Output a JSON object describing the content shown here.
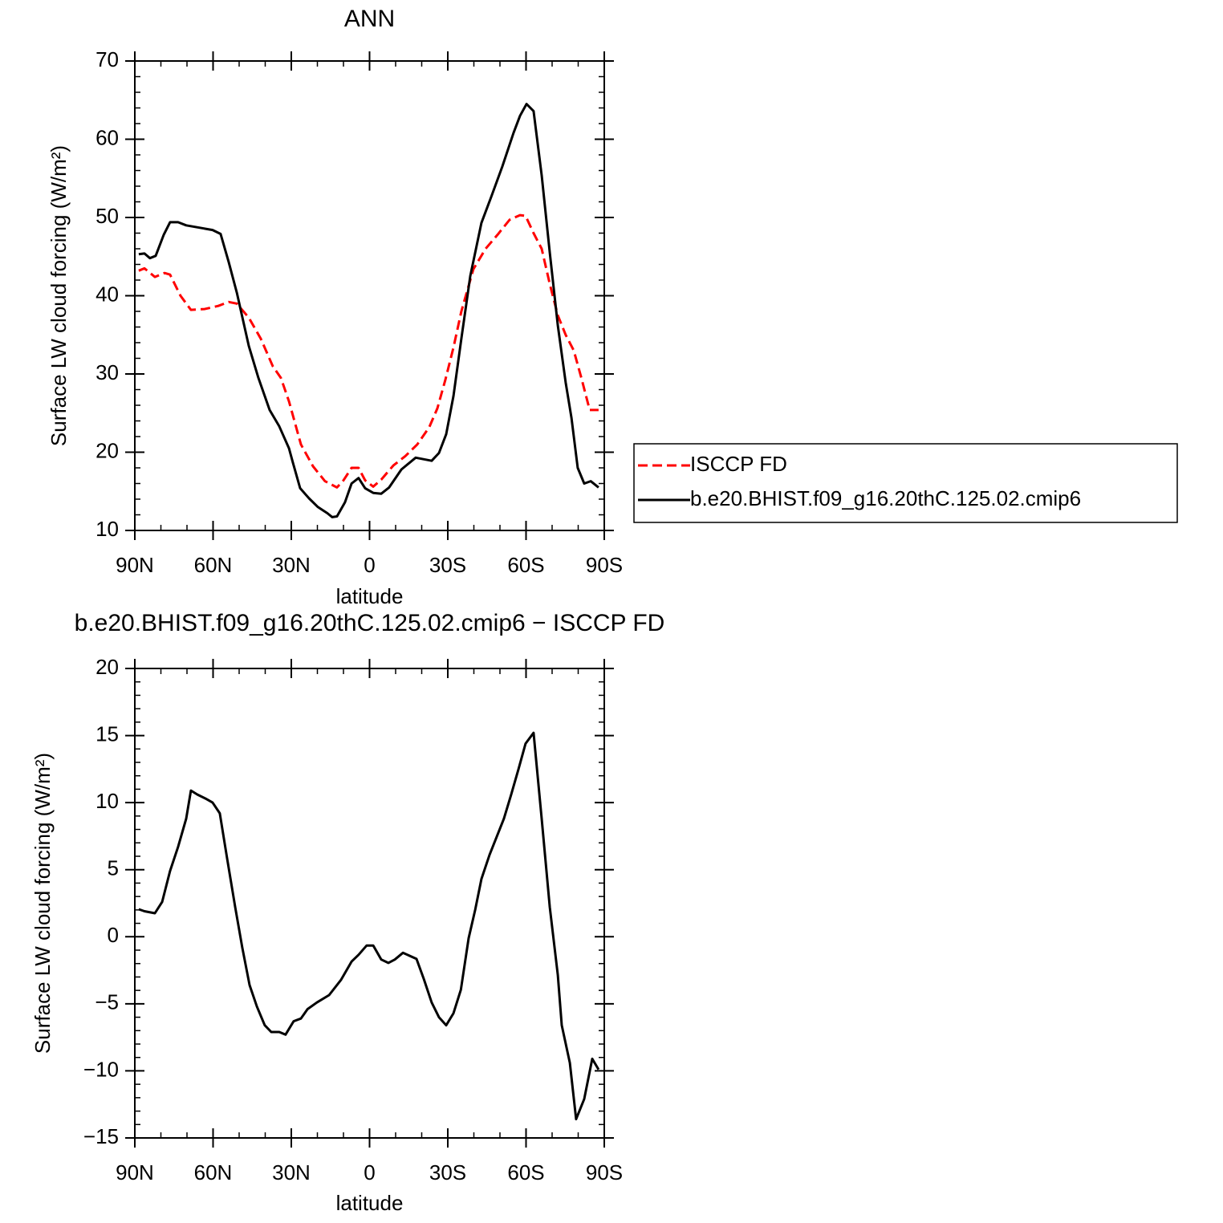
{
  "chart_data": [
    {
      "type": "line",
      "title": "ANN",
      "x_label": "latitude",
      "y_label": "Surface LW cloud forcing (W/m²)",
      "xlim": [
        90,
        -90
      ],
      "ylim": [
        10,
        70
      ],
      "xticks": [
        {
          "value": 90,
          "label": "90N"
        },
        {
          "value": 60,
          "label": "60N"
        },
        {
          "value": 30,
          "label": "30N"
        },
        0,
        {
          "value": -30,
          "label": "30S"
        },
        {
          "value": -60,
          "label": "60S"
        },
        {
          "value": -90,
          "label": "90S"
        }
      ],
      "yticks": [
        10,
        20,
        30,
        40,
        50,
        60,
        70
      ],
      "series": [
        {
          "name": "ISCCP FD",
          "color": "#ff0000",
          "style": "dashed",
          "x": [
            88.5,
            86.3,
            82.3,
            78.6,
            76.5,
            72.5,
            68.5,
            63.2,
            58.0,
            54.0,
            50.9,
            46.3,
            41.7,
            37.1,
            34.0,
            30.9,
            26.3,
            21.7,
            17.1,
            12.5,
            10.0,
            6.9,
            4.2,
            1.7,
            -1.4,
            -4.5,
            -9.1,
            -13.7,
            -18.3,
            -22.9,
            -26.0,
            -29.1,
            -32.2,
            -35.2,
            -39.8,
            -44.5,
            -49.1,
            -53.7,
            -57.7,
            -59.8,
            -62.9,
            -66.0,
            -69.1,
            -72.2,
            -75.2,
            -78.3,
            -81.3,
            -84.4,
            -87.8
          ],
          "values": [
            43.2,
            43.5,
            42.4,
            42.9,
            42.7,
            40.0,
            38.2,
            38.3,
            38.7,
            39.2,
            39.0,
            37.2,
            34.5,
            31.0,
            29.5,
            26.5,
            21.0,
            18.2,
            16.3,
            15.5,
            16.4,
            18.0,
            18.0,
            16.4,
            15.6,
            16.5,
            18.3,
            19.5,
            21.0,
            23.2,
            25.6,
            29.3,
            33.4,
            38.0,
            43.4,
            46.0,
            47.8,
            49.7,
            50.3,
            50.2,
            48.0,
            46.0,
            41.5,
            37.5,
            35.0,
            33.0,
            29.4,
            25.4,
            25.4
          ]
        },
        {
          "name": "b.e20.BHIST.f09_g16.20thC.125.02.cmip6",
          "color": "#000000",
          "style": "solid",
          "x": [
            88.5,
            86.3,
            84.2,
            82.0,
            78.9,
            76.5,
            73.4,
            70.3,
            63.5,
            60.2,
            57.1,
            54.0,
            50.9,
            46.3,
            42.6,
            38.3,
            34.6,
            30.9,
            29.4,
            26.6,
            23.2,
            19.8,
            16.2,
            14.3,
            12.5,
            9.4,
            6.9,
            4.2,
            1.7,
            -1.4,
            -4.5,
            -7.5,
            -12.2,
            -17.7,
            -23.8,
            -26.6,
            -29.4,
            -32.2,
            -35.2,
            -38.6,
            -42.9,
            -46.6,
            -50.9,
            -55.2,
            -57.7,
            -60.2,
            -62.9,
            -66.0,
            -69.1,
            -72.2,
            -75.2,
            -77.4,
            -79.8,
            -82.3,
            -84.8,
            -87.8
          ],
          "values": [
            45.3,
            45.4,
            44.8,
            45.1,
            47.8,
            49.4,
            49.4,
            49.0,
            48.6,
            48.4,
            47.9,
            44.3,
            40.4,
            33.6,
            29.5,
            25.4,
            23.3,
            20.5,
            18.7,
            15.4,
            14.1,
            13.0,
            12.2,
            11.7,
            11.8,
            13.6,
            16.0,
            16.7,
            15.4,
            14.8,
            14.7,
            15.5,
            17.8,
            19.3,
            18.9,
            19.9,
            22.3,
            27.2,
            34.5,
            42.5,
            49.3,
            52.6,
            56.5,
            60.8,
            63.0,
            64.5,
            63.6,
            55.4,
            45.5,
            36.2,
            28.9,
            24.4,
            18.0,
            16.0,
            16.3,
            15.5
          ]
        }
      ]
    },
    {
      "type": "line",
      "title": "b.e20.BHIST.f09_g16.20thC.125.02.cmip6 − ISCCP FD",
      "x_label": "latitude",
      "y_label": "Surface LW cloud forcing (W/m²)",
      "xlim": [
        90,
        -90
      ],
      "ylim": [
        -15,
        20
      ],
      "xticks": [
        {
          "value": 90,
          "label": "90N"
        },
        {
          "value": 60,
          "label": "60N"
        },
        {
          "value": 30,
          "label": "30N"
        },
        0,
        {
          "value": -30,
          "label": "30S"
        },
        {
          "value": -60,
          "label": "60S"
        },
        {
          "value": -90,
          "label": "90S"
        }
      ],
      "yticks": [
        {
          "value": -15,
          "label": "−15"
        },
        {
          "value": -10,
          "label": "−10"
        },
        {
          "value": -5,
          "label": "−5"
        },
        0,
        5,
        10,
        15,
        20
      ],
      "x": [
        88.5,
        86.3,
        82.3,
        79.5,
        76.5,
        73.4,
        70.3,
        68.5,
        66.0,
        62.9,
        60.2,
        57.4,
        54.6,
        51.5,
        48.8,
        46.0,
        43.2,
        40.2,
        37.7,
        34.6,
        32.2,
        29.1,
        26.3,
        23.8,
        20.2,
        15.5,
        10.9,
        6.9,
        4.2,
        1.1,
        -1.4,
        -4.5,
        -7.2,
        -9.7,
        -12.8,
        -18.0,
        -20.8,
        -23.8,
        -26.6,
        -29.4,
        -32.2,
        -35.0,
        -38.0,
        -40.5,
        -42.9,
        -46.0,
        -51.5,
        -54.3,
        -57.1,
        -59.8,
        -62.9,
        -66.0,
        -69.1,
        -72.2,
        -73.7,
        -76.8,
        -79.2,
        -82.3,
        -85.4,
        -87.8
      ],
      "series": [
        {
          "name": "b.e20.BHIST.f09_g16.20thC.125.02.cmip6 − ISCCP FD",
          "color": "#000000",
          "style": "solid",
          "values": [
            2.05,
            1.9,
            1.75,
            2.6,
            4.9,
            6.7,
            8.8,
            10.9,
            10.6,
            10.3,
            10.0,
            9.2,
            5.8,
            2.2,
            -0.8,
            -3.6,
            -5.2,
            -6.6,
            -7.1,
            -7.1,
            -7.3,
            -6.3,
            -6.1,
            -5.4,
            -4.9,
            -4.35,
            -3.2,
            -1.85,
            -1.35,
            -0.65,
            -0.65,
            -1.7,
            -1.95,
            -1.7,
            -1.2,
            -1.65,
            -3.15,
            -4.9,
            -6.0,
            -6.6,
            -5.7,
            -3.95,
            -0.1,
            2.0,
            4.3,
            6.1,
            8.8,
            10.6,
            12.5,
            14.4,
            15.2,
            8.8,
            2.2,
            -2.85,
            -6.6,
            -9.4,
            -13.6,
            -12.1,
            -9.1,
            -9.9
          ]
        }
      ]
    }
  ]
}
